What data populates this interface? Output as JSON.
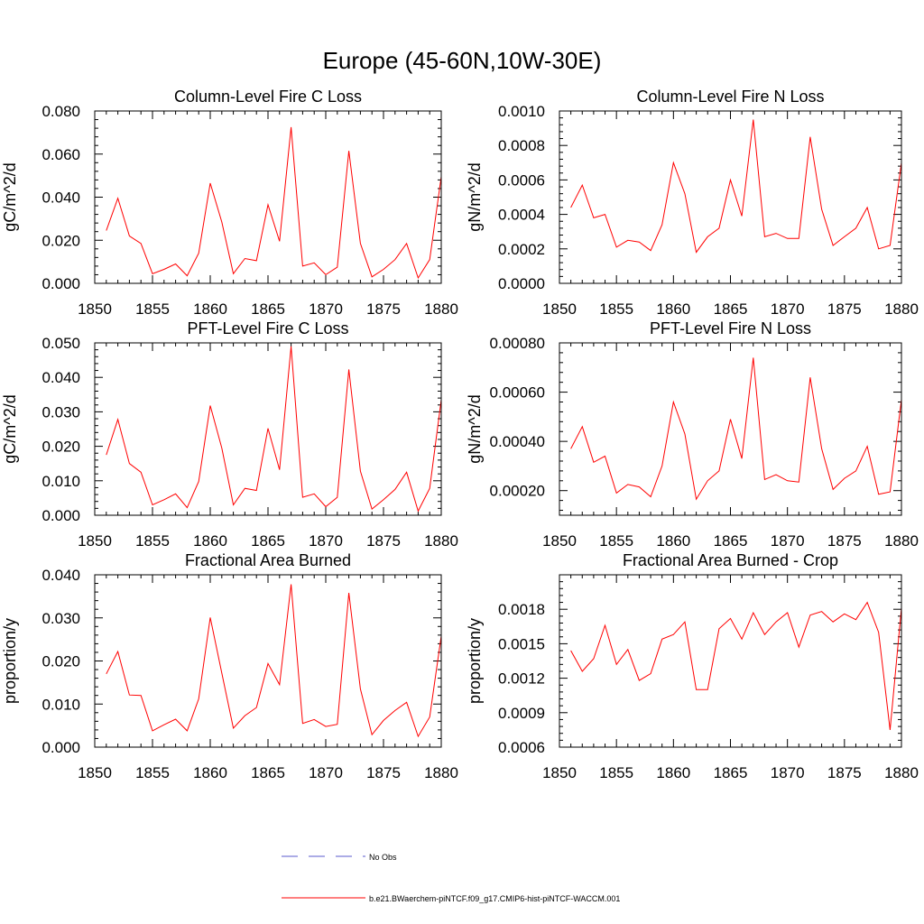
{
  "title": "Europe (45-60N,10W-30E)",
  "legend": {
    "entries": [
      {
        "label": "No Obs",
        "color": "#5a5acd",
        "style": "dashed"
      },
      {
        "label": "b.e21.BWaerchem-piNTCF.f09_g17.CMIP6-hist-piNTCF-WACCM.001",
        "color": "#ff0000",
        "style": "solid"
      }
    ]
  },
  "chart_data": [
    {
      "type": "line",
      "title": "Column-Level Fire C Loss",
      "ylabel": "gC/m^2/d",
      "xlim": [
        1850,
        1880
      ],
      "ylim": [
        0,
        0.08
      ],
      "xticks": [
        1850,
        1855,
        1860,
        1865,
        1870,
        1875,
        1880
      ],
      "yticks": [
        0,
        0.02,
        0.04,
        0.06,
        0.08
      ],
      "ytick_labels": [
        "0.000",
        "0.020",
        "0.040",
        "0.060",
        "0.080"
      ],
      "series": [
        {
          "color": "#ff0000",
          "x": [
            1851,
            1852,
            1853,
            1854,
            1855,
            1856,
            1857,
            1858,
            1859,
            1860,
            1861,
            1862,
            1863,
            1864,
            1865,
            1866,
            1867,
            1868,
            1869,
            1870,
            1871,
            1872,
            1873,
            1874,
            1875,
            1876,
            1877,
            1878,
            1879,
            1880
          ],
          "values": [
            0.0245,
            0.0395,
            0.022,
            0.0185,
            0.0045,
            0.0065,
            0.009,
            0.0035,
            0.014,
            0.0465,
            0.0285,
            0.0045,
            0.0115,
            0.0105,
            0.0365,
            0.0195,
            0.0725,
            0.008,
            0.0095,
            0.004,
            0.0075,
            0.0615,
            0.0185,
            0.003,
            0.0065,
            0.011,
            0.0185,
            0.0025,
            0.011,
            0.0495
          ]
        }
      ]
    },
    {
      "type": "line",
      "title": "Column-Level Fire N Loss",
      "ylabel": "gN/m^2/d",
      "xlim": [
        1850,
        1880
      ],
      "ylim": [
        0,
        0.001
      ],
      "xticks": [
        1850,
        1855,
        1860,
        1865,
        1870,
        1875,
        1880
      ],
      "yticks": [
        0,
        0.0002,
        0.0004,
        0.0006,
        0.0008,
        0.001
      ],
      "ytick_labels": [
        "0.0000",
        "0.0002",
        "0.0004",
        "0.0006",
        "0.0008",
        "0.0010"
      ],
      "series": [
        {
          "color": "#ff0000",
          "x": [
            1851,
            1852,
            1853,
            1854,
            1855,
            1856,
            1857,
            1858,
            1859,
            1860,
            1861,
            1862,
            1863,
            1864,
            1865,
            1866,
            1867,
            1868,
            1869,
            1870,
            1871,
            1872,
            1873,
            1874,
            1875,
            1876,
            1877,
            1878,
            1879,
            1880
          ],
          "values": [
            0.00044,
            0.00057,
            0.00038,
            0.0004,
            0.00021,
            0.00025,
            0.00024,
            0.00019,
            0.00034,
            0.0007,
            0.00052,
            0.00018,
            0.00027,
            0.00032,
            0.0006,
            0.00039,
            0.00095,
            0.00027,
            0.00029,
            0.00026,
            0.00026,
            0.00085,
            0.00043,
            0.00022,
            0.00027,
            0.00032,
            0.00044,
            0.0002,
            0.00022,
            0.0007
          ]
        }
      ]
    },
    {
      "type": "line",
      "title": "PFT-Level Fire C Loss",
      "ylabel": "gC/m^2/d",
      "xlim": [
        1850,
        1880
      ],
      "ylim": [
        0,
        0.05
      ],
      "xticks": [
        1850,
        1855,
        1860,
        1865,
        1870,
        1875,
        1880
      ],
      "yticks": [
        0,
        0.01,
        0.02,
        0.03,
        0.04,
        0.05
      ],
      "ytick_labels": [
        "0.000",
        "0.010",
        "0.020",
        "0.030",
        "0.040",
        "0.050"
      ],
      "series": [
        {
          "color": "#ff0000",
          "x": [
            1851,
            1852,
            1853,
            1854,
            1855,
            1856,
            1857,
            1858,
            1859,
            1860,
            1861,
            1862,
            1863,
            1864,
            1865,
            1866,
            1867,
            1868,
            1869,
            1870,
            1871,
            1872,
            1873,
            1874,
            1875,
            1876,
            1877,
            1878,
            1879,
            1880
          ],
          "values": [
            0.0175,
            0.0278,
            0.015,
            0.0125,
            0.003,
            0.0045,
            0.0062,
            0.0022,
            0.0098,
            0.0318,
            0.0195,
            0.003,
            0.0078,
            0.0072,
            0.0252,
            0.0132,
            0.049,
            0.0052,
            0.0062,
            0.0025,
            0.0052,
            0.0423,
            0.0128,
            0.0018,
            0.0045,
            0.0075,
            0.0125,
            0.0012,
            0.0078,
            0.0335
          ]
        }
      ]
    },
    {
      "type": "line",
      "title": "PFT-Level Fire N Loss",
      "ylabel": "gN/m^2/d",
      "xlim": [
        1850,
        1880
      ],
      "ylim": [
        0.0001,
        0.0008
      ],
      "xticks": [
        1850,
        1855,
        1860,
        1865,
        1870,
        1875,
        1880
      ],
      "yticks": [
        0.0002,
        0.0004,
        0.0006,
        0.0008
      ],
      "ytick_labels": [
        "0.00020",
        "0.00040",
        "0.00060",
        "0.00080"
      ],
      "series": [
        {
          "color": "#ff0000",
          "x": [
            1851,
            1852,
            1853,
            1854,
            1855,
            1856,
            1857,
            1858,
            1859,
            1860,
            1861,
            1862,
            1863,
            1864,
            1865,
            1866,
            1867,
            1868,
            1869,
            1870,
            1871,
            1872,
            1873,
            1874,
            1875,
            1876,
            1877,
            1878,
            1879,
            1880
          ],
          "values": [
            0.00037,
            0.00046,
            0.000315,
            0.00034,
            0.00019,
            0.000225,
            0.000215,
            0.000175,
            0.0003,
            0.00056,
            0.00043,
            0.000165,
            0.00024,
            0.00028,
            0.00049,
            0.00033,
            0.00074,
            0.000245,
            0.000265,
            0.00024,
            0.000235,
            0.00066,
            0.00037,
            0.000205,
            0.00025,
            0.00028,
            0.00038,
            0.000185,
            0.000195,
            0.00057
          ]
        }
      ]
    },
    {
      "type": "line",
      "title": "Fractional Area Burned",
      "ylabel": "proportion/y",
      "xlim": [
        1850,
        1880
      ],
      "ylim": [
        0,
        0.04
      ],
      "xticks": [
        1850,
        1855,
        1860,
        1865,
        1870,
        1875,
        1880
      ],
      "yticks": [
        0,
        0.01,
        0.02,
        0.03,
        0.04
      ],
      "ytick_labels": [
        "0.000",
        "0.010",
        "0.020",
        "0.030",
        "0.040"
      ],
      "series": [
        {
          "color": "#ff0000",
          "x": [
            1851,
            1852,
            1853,
            1854,
            1855,
            1856,
            1857,
            1858,
            1859,
            1860,
            1861,
            1862,
            1863,
            1864,
            1865,
            1866,
            1867,
            1868,
            1869,
            1870,
            1871,
            1872,
            1873,
            1874,
            1875,
            1876,
            1877,
            1878,
            1879,
            1880
          ],
          "values": [
            0.017,
            0.0222,
            0.0121,
            0.012,
            0.0038,
            0.0052,
            0.0065,
            0.0038,
            0.0112,
            0.0301,
            0.0172,
            0.0044,
            0.0073,
            0.0092,
            0.0194,
            0.0145,
            0.0378,
            0.0055,
            0.0064,
            0.0048,
            0.0053,
            0.0358,
            0.0135,
            0.0029,
            0.0062,
            0.0085,
            0.0104,
            0.0025,
            0.007,
            0.0258
          ]
        }
      ]
    },
    {
      "type": "line",
      "title": "Fractional Area Burned - Crop",
      "ylabel": "proportion/y",
      "xlim": [
        1850,
        1880
      ],
      "ylim": [
        0.0006,
        0.0021
      ],
      "xticks": [
        1850,
        1855,
        1860,
        1865,
        1870,
        1875,
        1880
      ],
      "yticks": [
        0.0006,
        0.0009,
        0.0012,
        0.0015,
        0.0018
      ],
      "ytick_labels": [
        "0.0006",
        "0.0009",
        "0.0012",
        "0.0015",
        "0.0018"
      ],
      "series": [
        {
          "color": "#ff0000",
          "x": [
            1851,
            1852,
            1853,
            1854,
            1855,
            1856,
            1857,
            1858,
            1859,
            1860,
            1861,
            1862,
            1863,
            1864,
            1865,
            1866,
            1867,
            1868,
            1869,
            1870,
            1871,
            1872,
            1873,
            1874,
            1875,
            1876,
            1877,
            1878,
            1879,
            1880
          ],
          "values": [
            0.00144,
            0.00126,
            0.00137,
            0.00166,
            0.00132,
            0.00145,
            0.00118,
            0.00124,
            0.00154,
            0.00158,
            0.00169,
            0.0011,
            0.0011,
            0.00163,
            0.00172,
            0.00154,
            0.00177,
            0.00158,
            0.00169,
            0.00177,
            0.00147,
            0.00175,
            0.00178,
            0.00169,
            0.00176,
            0.00171,
            0.00186,
            0.0016,
            0.00075,
            0.00181
          ]
        }
      ]
    }
  ]
}
